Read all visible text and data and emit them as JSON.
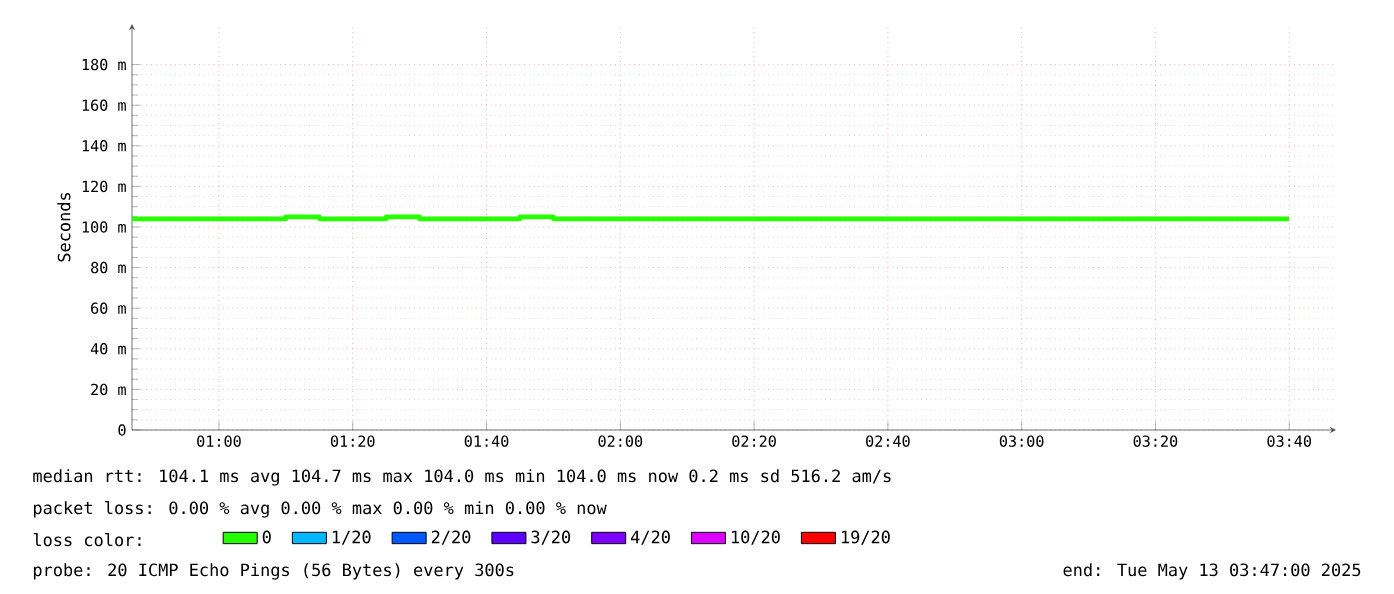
{
  "chart_data": {
    "type": "step",
    "ylabel": "Seconds",
    "legend_title": "loss color:",
    "x": [
      0.7833,
      0.8333,
      0.9167,
      1,
      1.0833,
      1.1667,
      1.25,
      1.3333,
      1.4167,
      1.5,
      1.5833,
      1.6667,
      1.75,
      1.8333,
      1.9167,
      2,
      2.0833,
      2.1667,
      2.25,
      2.3333,
      2.4167,
      2.5,
      2.5833,
      2.6667,
      2.75,
      2.8333,
      2.9167,
      3,
      3.0833,
      3.1667,
      3.25,
      3.3333,
      3.4167,
      3.5,
      3.5833,
      3.6667
    ],
    "series": [
      {
        "name": "0",
        "color": "#26ff00",
        "values": [
          104,
          104,
          104,
          104,
          104,
          105,
          104,
          104,
          105,
          104,
          104,
          104,
          105,
          104,
          104,
          104,
          104,
          104,
          104,
          104,
          104,
          104,
          104,
          104,
          104,
          104,
          104,
          104,
          104,
          104,
          104,
          104,
          104,
          104,
          104,
          104
        ]
      },
      {
        "name": "1/20",
        "color": "#00b8ff",
        "values": [
          null,
          null,
          null,
          null,
          null,
          null,
          null,
          null,
          null,
          null,
          null,
          null,
          null,
          null,
          null,
          null,
          null,
          null,
          null,
          null,
          null,
          null,
          null,
          null,
          null,
          null,
          null,
          null,
          null,
          null,
          null,
          null,
          null,
          null,
          null,
          null
        ]
      },
      {
        "name": "2/20",
        "color": "#0059ff",
        "values": [
          null,
          null,
          null,
          null,
          null,
          null,
          null,
          null,
          null,
          null,
          null,
          null,
          null,
          null,
          null,
          null,
          null,
          null,
          null,
          null,
          null,
          null,
          null,
          null,
          null,
          null,
          null,
          null,
          null,
          null,
          null,
          null,
          null,
          null,
          null,
          null
        ]
      },
      {
        "name": "3/20",
        "color": "#5e00ff",
        "values": [
          null,
          null,
          null,
          null,
          null,
          null,
          null,
          null,
          null,
          null,
          null,
          null,
          null,
          null,
          null,
          null,
          null,
          null,
          null,
          null,
          null,
          null,
          null,
          null,
          null,
          null,
          null,
          null,
          null,
          null,
          null,
          null,
          null,
          null,
          null,
          null
        ]
      },
      {
        "name": "4/20",
        "color": "#7e00ff",
        "values": [
          null,
          null,
          null,
          null,
          null,
          null,
          null,
          null,
          null,
          null,
          null,
          null,
          null,
          null,
          null,
          null,
          null,
          null,
          null,
          null,
          null,
          null,
          null,
          null,
          null,
          null,
          null,
          null,
          null,
          null,
          null,
          null,
          null,
          null,
          null,
          null
        ]
      },
      {
        "name": "10/20",
        "color": "#dd00ff",
        "values": [
          null,
          null,
          null,
          null,
          null,
          null,
          null,
          null,
          null,
          null,
          null,
          null,
          null,
          null,
          null,
          null,
          null,
          null,
          null,
          null,
          null,
          null,
          null,
          null,
          null,
          null,
          null,
          null,
          null,
          null,
          null,
          null,
          null,
          null,
          null,
          null
        ]
      },
      {
        "name": "19/20",
        "color": "#ff0000",
        "values": [
          null,
          null,
          null,
          null,
          null,
          null,
          null,
          null,
          null,
          null,
          null,
          null,
          null,
          null,
          null,
          null,
          null,
          null,
          null,
          null,
          null,
          null,
          null,
          null,
          null,
          null,
          null,
          null,
          null,
          null,
          null,
          null,
          null,
          null,
          null,
          null
        ]
      }
    ],
    "xlim": [
      0.7833,
      3.7833
    ],
    "xticks": [
      {
        "value": 1,
        "label": "01:00"
      },
      {
        "value": 1.3333,
        "label": "01:20"
      },
      {
        "value": 1.6667,
        "label": "01:40"
      },
      {
        "value": 2,
        "label": "02:00"
      },
      {
        "value": 2.3333,
        "label": "02:20"
      },
      {
        "value": 2.6667,
        "label": "02:40"
      },
      {
        "value": 3,
        "label": "03:00"
      },
      {
        "value": 3.3333,
        "label": "03:20"
      },
      {
        "value": 3.6667,
        "label": "03:40"
      }
    ],
    "ylim": [
      0,
      200
    ],
    "yticks": [
      0,
      {
        "value": 20,
        "label": "20 m"
      },
      {
        "value": 40,
        "label": "40 m"
      },
      {
        "value": 60,
        "label": "60 m"
      },
      {
        "value": 80,
        "label": "80 m"
      },
      {
        "value": 100,
        "label": "100 m"
      },
      {
        "value": 120,
        "label": "120 m"
      },
      {
        "value": 140,
        "label": "140 m"
      },
      {
        "value": 160,
        "label": "160 m"
      },
      {
        "value": 180,
        "label": "180 m"
      }
    ],
    "grid": true,
    "legend": "bottom",
    "line_style": "solid",
    "annotations": [
      "median rtt:  104.1 ms avg  104.7 ms max  104.0 ms min  104.0 ms now  0.2 ms sd  516.2   am/s",
      "packet loss: 0.00 % avg  0.00 % max  0.00 % min  0.00 % now",
      "probe:       20 ICMP Echo Pings (56 Bytes) every 300s",
      "end: Tue May 13 03:47:00 2025"
    ]
  }
}
